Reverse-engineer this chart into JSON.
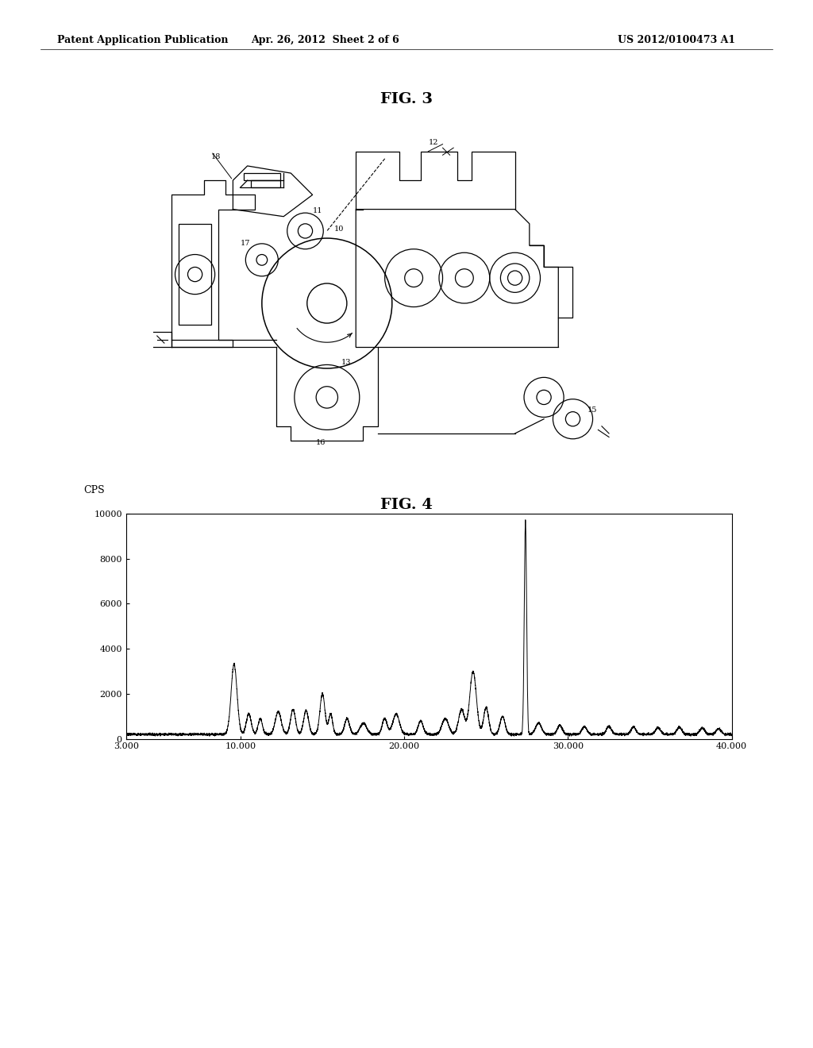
{
  "header_left": "Patent Application Publication",
  "header_middle": "Apr. 26, 2012  Sheet 2 of 6",
  "header_right": "US 2012/0100473 A1",
  "fig3_title": "FIG. 3",
  "fig4_title": "FIG. 4",
  "fig4_ylabel": "CPS",
  "fig4_yticks": [
    0,
    2000,
    4000,
    6000,
    8000,
    10000
  ],
  "fig4_xticks": [
    3.0,
    10.0,
    20.0,
    30.0,
    40.0
  ],
  "fig4_xtick_labels": [
    "3.000",
    "10.000",
    "20.000",
    "30.000",
    "40.000"
  ],
  "fig4_xlim": [
    3.0,
    40.0
  ],
  "fig4_ylim": [
    0,
    10000
  ],
  "background_color": "#ffffff",
  "line_color": "#000000"
}
